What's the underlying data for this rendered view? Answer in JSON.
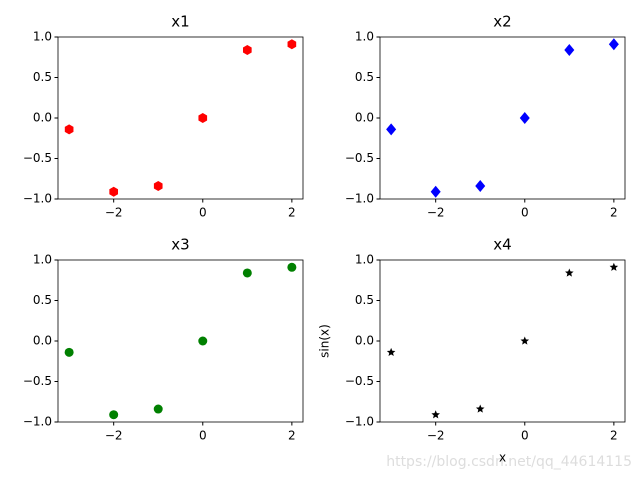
{
  "chart_data": [
    {
      "type": "scatter",
      "title": "x1",
      "x": [
        -3,
        -2,
        -1,
        0,
        1,
        2
      ],
      "values": [
        -0.14,
        -0.91,
        -0.84,
        0,
        0.84,
        0.91
      ],
      "color": "#ff0000",
      "marker": "hexagon",
      "xlim": [
        -3.25,
        2.25
      ],
      "ylim": [
        -1,
        1
      ],
      "xticks": [
        {
          "value": -2,
          "label": "−2"
        },
        0,
        2
      ],
      "yticks": [
        {
          "value": -1,
          "label": "−1.0"
        },
        {
          "value": -0.5,
          "label": "−0.5"
        },
        {
          "value": 0,
          "label": "0.0"
        },
        0.5,
        {
          "value": 1,
          "label": "1.0"
        }
      ]
    },
    {
      "type": "scatter",
      "title": "x2",
      "x": [
        -3,
        -2,
        -1,
        0,
        1,
        2
      ],
      "values": [
        -0.14,
        -0.91,
        -0.84,
        0,
        0.84,
        0.91
      ],
      "color": "#0000ff",
      "marker": "diamond",
      "xlim": [
        -3.25,
        2.25
      ],
      "ylim": [
        -1,
        1
      ],
      "xticks": [
        {
          "value": -2,
          "label": "−2"
        },
        0,
        2
      ],
      "yticks": [
        {
          "value": -1,
          "label": "−1.0"
        },
        {
          "value": -0.5,
          "label": "−0.5"
        },
        {
          "value": 0,
          "label": "0.0"
        },
        0.5,
        {
          "value": 1,
          "label": "1.0"
        }
      ]
    },
    {
      "type": "scatter",
      "title": "x3",
      "x": [
        -3,
        -2,
        -1,
        0,
        1,
        2
      ],
      "values": [
        -0.14,
        -0.91,
        -0.84,
        0,
        0.84,
        0.91
      ],
      "color": "#008000",
      "marker": "circle",
      "xlim": [
        -3.25,
        2.25
      ],
      "ylim": [
        -1,
        1
      ],
      "xticks": [
        {
          "value": -2,
          "label": "−2"
        },
        0,
        2
      ],
      "yticks": [
        {
          "value": -1,
          "label": "−1.0"
        },
        {
          "value": -0.5,
          "label": "−0.5"
        },
        {
          "value": 0,
          "label": "0.0"
        },
        0.5,
        {
          "value": 1,
          "label": "1.0"
        }
      ]
    },
    {
      "type": "scatter",
      "title": "x4",
      "x_label": "x",
      "y_label": "sin(x)",
      "x": [
        -3,
        -2,
        -1,
        0,
        1,
        2
      ],
      "values": [
        -0.14,
        -0.91,
        -0.84,
        0,
        0.84,
        0.91
      ],
      "color": "#000000",
      "marker": "star",
      "xlim": [
        -3.25,
        2.25
      ],
      "ylim": [
        -1,
        1
      ],
      "xticks": [
        {
          "value": -2,
          "label": "−2"
        },
        0,
        2
      ],
      "yticks": [
        {
          "value": -1,
          "label": "−1.0"
        },
        {
          "value": -0.5,
          "label": "−0.5"
        },
        {
          "value": 0,
          "label": "0.0"
        },
        0.5,
        {
          "value": 1,
          "label": "1.0"
        }
      ]
    }
  ],
  "watermark": "https://blog.csdn.net/qq_44614115"
}
